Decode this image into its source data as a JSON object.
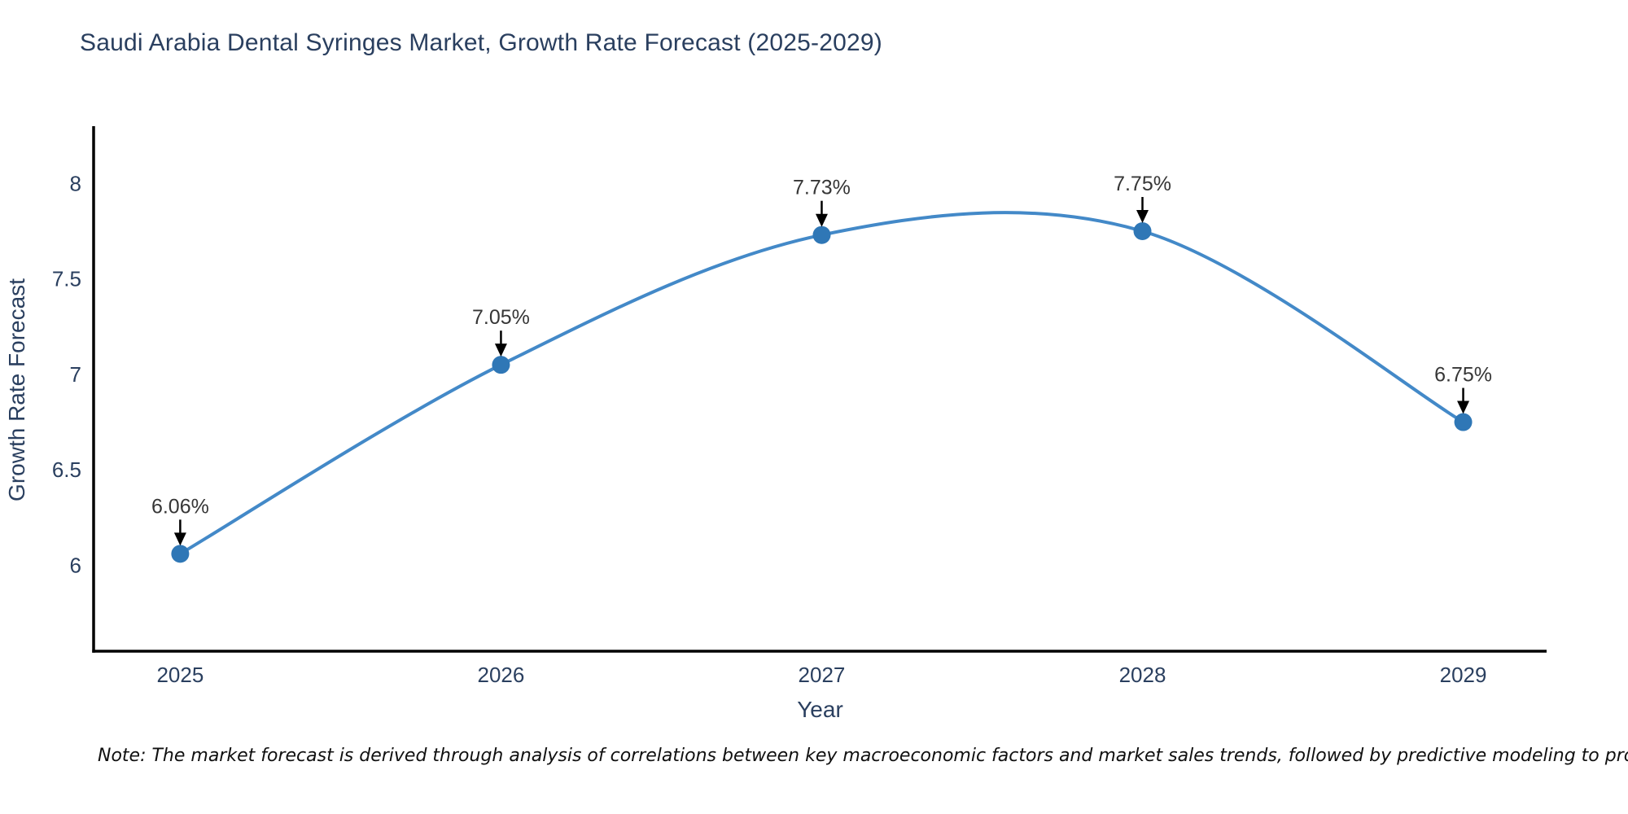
{
  "note": "Note: The market forecast is derived through analysis of correlations between key macroeconomic factors and market sales trends, followed by predictive modeling to project future sales",
  "chart_data": {
    "type": "line",
    "title": "Saudi Arabia Dental Syringes Market, Growth Rate Forecast (2025-2029)",
    "xlabel": "Year",
    "ylabel": "Growth Rate Forecast",
    "x": [
      2025,
      2026,
      2027,
      2028,
      2029
    ],
    "values": [
      6.06,
      7.05,
      7.73,
      7.75,
      6.75
    ],
    "point_labels": [
      "6.06%",
      "7.05%",
      "7.73%",
      "7.75%",
      "6.75%"
    ],
    "xticks": [
      "2025",
      "2026",
      "2027",
      "2028",
      "2029"
    ],
    "yticks": [
      8,
      7.5,
      7,
      6.5,
      6
    ],
    "xlim": [
      2024.73,
      2029.26
    ],
    "ylim": [
      5.55,
      8.3
    ],
    "grid": false,
    "legend_position": "none",
    "line_shape": "spline",
    "annotation_arrows": true,
    "colors": {
      "line": "#4389c8",
      "marker": "#2f77b6",
      "axis": "#000000",
      "tick_text": "#2a3f5f",
      "annotation_text": "#363636",
      "arrow": "#000000",
      "background": "#ffffff"
    }
  }
}
